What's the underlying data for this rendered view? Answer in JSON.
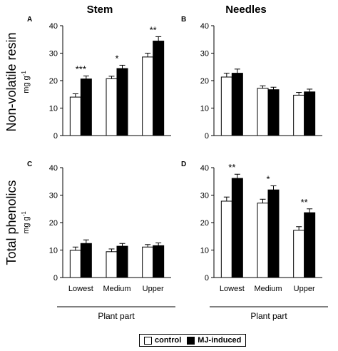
{
  "column_titles": [
    "Stem",
    "Needles"
  ],
  "row_labels": [
    {
      "title": "Non-volatile resin",
      "unit_base": "mg g",
      "unit_exp": "-1"
    },
    {
      "title": "Total phenolics",
      "unit_base": "mg g",
      "unit_exp": "-1"
    }
  ],
  "x_axis_label": "Plant part",
  "legend": [
    {
      "label": "control",
      "color": "#ffffff"
    },
    {
      "label": "MJ-induced",
      "color": "#000000"
    }
  ],
  "colors": {
    "control": "#ffffff",
    "mj": "#000000",
    "axis": "#000000"
  },
  "chart_data": [
    {
      "type": "bar",
      "panel": "A",
      "categories": [
        "Lowest",
        "Medium",
        "Upper"
      ],
      "series": [
        {
          "name": "control",
          "values": [
            14,
            20.7,
            28.6
          ],
          "errors": [
            1.2,
            0.9,
            1.4
          ]
        },
        {
          "name": "MJ-induced",
          "values": [
            20.6,
            24.4,
            34.4
          ],
          "errors": [
            1.1,
            1.2,
            1.6
          ]
        }
      ],
      "significance": [
        "***",
        "*",
        "**"
      ],
      "ylim": [
        0,
        40
      ],
      "yticks": [
        0,
        10,
        20,
        30,
        40
      ],
      "show_category_labels": false
    },
    {
      "type": "bar",
      "panel": "B",
      "categories": [
        "Lowest",
        "Medium",
        "Upper"
      ],
      "series": [
        {
          "name": "control",
          "values": [
            21.3,
            17.2,
            14.7
          ],
          "errors": [
            1.4,
            0.9,
            1.0
          ]
        },
        {
          "name": "MJ-induced",
          "values": [
            22.7,
            16.7,
            15.9
          ],
          "errors": [
            1.5,
            0.9,
            1.0
          ]
        }
      ],
      "significance": [
        "",
        "",
        ""
      ],
      "ylim": [
        0,
        40
      ],
      "yticks": [
        0,
        10,
        20,
        30,
        40
      ],
      "show_category_labels": false
    },
    {
      "type": "bar",
      "panel": "C",
      "categories": [
        "Lowest",
        "Medium",
        "Upper"
      ],
      "series": [
        {
          "name": "control",
          "values": [
            9.9,
            9.4,
            11.1
          ],
          "errors": [
            1.2,
            1.0,
            0.9
          ]
        },
        {
          "name": "MJ-induced",
          "values": [
            12.4,
            11.4,
            11.6
          ],
          "errors": [
            1.3,
            1.0,
            1.0
          ]
        }
      ],
      "significance": [
        "",
        "",
        ""
      ],
      "ylim": [
        0,
        40
      ],
      "yticks": [
        0,
        10,
        20,
        30,
        40
      ],
      "show_category_labels": true
    },
    {
      "type": "bar",
      "panel": "D",
      "categories": [
        "Lowest",
        "Medium",
        "Upper"
      ],
      "series": [
        {
          "name": "control",
          "values": [
            27.8,
            27.1,
            17.2
          ],
          "errors": [
            1.5,
            1.4,
            1.3
          ]
        },
        {
          "name": "MJ-induced",
          "values": [
            36.1,
            31.9,
            23.6
          ],
          "errors": [
            1.5,
            1.5,
            1.4
          ]
        }
      ],
      "significance": [
        "**",
        "*",
        "**"
      ],
      "ylim": [
        0,
        40
      ],
      "yticks": [
        0,
        10,
        20,
        30,
        40
      ],
      "show_category_labels": true
    }
  ]
}
